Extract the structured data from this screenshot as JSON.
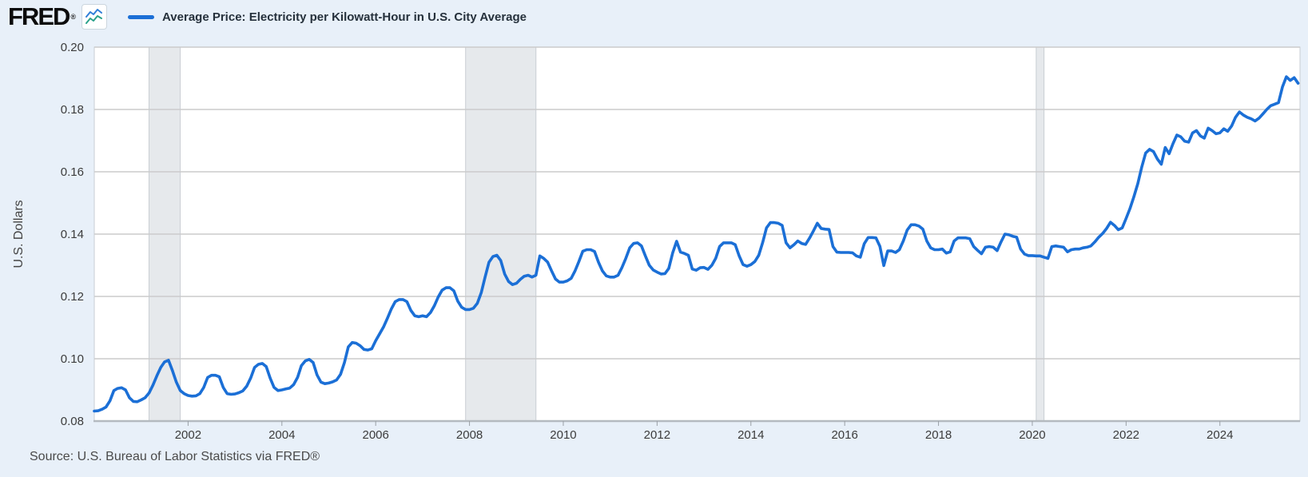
{
  "header": {
    "logo_text": "FRED",
    "registered_mark": "®",
    "legend": {
      "label": "Average Price: Electricity per Kilowatt-Hour in U.S. City Average",
      "swatch_color": "#1b6fd6"
    }
  },
  "y_axis": {
    "title": "U.S. Dollars",
    "tick_labels": [
      "0.20",
      "0.18",
      "0.16",
      "0.14",
      "0.12",
      "0.10",
      "0.08"
    ],
    "tick_values": [
      0.2,
      0.18,
      0.16,
      0.14,
      0.12,
      0.1,
      0.08
    ]
  },
  "x_axis": {
    "tick_labels": [
      "2002",
      "2004",
      "2006",
      "2008",
      "2010",
      "2012",
      "2014",
      "2016",
      "2018",
      "2020",
      "2022",
      "2024"
    ],
    "tick_values": [
      2002,
      2004,
      2006,
      2008,
      2010,
      2012,
      2014,
      2016,
      2018,
      2020,
      2022,
      2024
    ]
  },
  "footer": {
    "source": "Source: U.S. Bureau of Labor Statistics via FRED®"
  },
  "colors": {
    "page_background": "#e8f0f9",
    "plot_background": "#ffffff",
    "plot_border": "#c9ced4",
    "axis_line": "#b4bac0",
    "gridline": "#cbcbcb",
    "tick_mark": "#9aa0a6",
    "tick_text": "#3c3c3c",
    "recession_fill": "#e6e9ec",
    "recession_edge": "#c9ced3",
    "series_line": "#1b6fd6",
    "icon_blue": "#2f7ed8",
    "icon_green": "#2aa18a"
  },
  "chart_data": {
    "type": "line",
    "title": "Average Price: Electricity per Kilowatt-Hour in U.S. City Average",
    "ylabel": "U.S. Dollars",
    "xlim": [
      2000.0,
      2025.708
    ],
    "ylim": [
      0.08,
      0.2
    ],
    "y_gridlines": [
      0.08,
      0.1,
      0.12,
      0.14,
      0.16,
      0.18,
      0.2
    ],
    "x_ticks": [
      2002,
      2004,
      2006,
      2008,
      2010,
      2012,
      2014,
      2016,
      2018,
      2020,
      2022,
      2024
    ],
    "grid": "horizontal-only",
    "legend_position": "top-left",
    "recession_bands": [
      [
        2001.167,
        2001.833
      ],
      [
        2007.917,
        2009.417
      ],
      [
        2020.083,
        2020.25
      ]
    ],
    "frequency": "monthly",
    "x_start": "2000-01",
    "x_end": "2025-09",
    "series": [
      {
        "name": "Average Price: Electricity per Kilowatt-Hour in U.S. City Average",
        "color": "#1b6fd6",
        "values": [
          0.0832,
          0.0833,
          0.0838,
          0.0845,
          0.0865,
          0.0898,
          0.0905,
          0.0907,
          0.09,
          0.0875,
          0.0863,
          0.0862,
          0.0868,
          0.0875,
          0.089,
          0.0915,
          0.0945,
          0.0972,
          0.099,
          0.0995,
          0.0962,
          0.0925,
          0.0898,
          0.0888,
          0.0882,
          0.088,
          0.0881,
          0.0888,
          0.0908,
          0.094,
          0.0947,
          0.0947,
          0.0942,
          0.0908,
          0.0888,
          0.0886,
          0.0887,
          0.0891,
          0.0897,
          0.0912,
          0.0938,
          0.0972,
          0.0982,
          0.0985,
          0.0975,
          0.0938,
          0.0908,
          0.0898,
          0.09,
          0.0903,
          0.0906,
          0.0917,
          0.094,
          0.0978,
          0.0993,
          0.0998,
          0.0988,
          0.0948,
          0.0925,
          0.092,
          0.0922,
          0.0926,
          0.0932,
          0.095,
          0.0988,
          0.1038,
          0.1052,
          0.105,
          0.1042,
          0.103,
          0.1028,
          0.1032,
          0.1058,
          0.108,
          0.1102,
          0.113,
          0.116,
          0.1183,
          0.119,
          0.119,
          0.1183,
          0.1155,
          0.1138,
          0.1135,
          0.1138,
          0.1135,
          0.1148,
          0.117,
          0.1198,
          0.122,
          0.1228,
          0.1228,
          0.1218,
          0.1185,
          0.1165,
          0.1158,
          0.1158,
          0.1162,
          0.1178,
          0.1212,
          0.1262,
          0.131,
          0.1328,
          0.1332,
          0.1315,
          0.1272,
          0.1248,
          0.1238,
          0.1242,
          0.1255,
          0.1265,
          0.1268,
          0.1262,
          0.1268,
          0.133,
          0.1322,
          0.131,
          0.1282,
          0.1256,
          0.1246,
          0.1246,
          0.125,
          0.1258,
          0.1282,
          0.1312,
          0.1345,
          0.135,
          0.135,
          0.1344,
          0.131,
          0.1282,
          0.1266,
          0.1262,
          0.1262,
          0.1268,
          0.1292,
          0.1322,
          0.1356,
          0.137,
          0.1372,
          0.1362,
          0.133,
          0.13,
          0.1285,
          0.1278,
          0.1272,
          0.1273,
          0.129,
          0.134,
          0.1377,
          0.1342,
          0.1338,
          0.1332,
          0.1288,
          0.1284,
          0.1292,
          0.1293,
          0.1287,
          0.13,
          0.1322,
          0.136,
          0.1372,
          0.1372,
          0.1372,
          0.1366,
          0.133,
          0.1302,
          0.1297,
          0.1302,
          0.1312,
          0.1332,
          0.1372,
          0.142,
          0.1437,
          0.1437,
          0.1435,
          0.1428,
          0.1372,
          0.1356,
          0.1366,
          0.1378,
          0.137,
          0.1367,
          0.1387,
          0.141,
          0.1435,
          0.1418,
          0.1416,
          0.1415,
          0.136,
          0.1342,
          0.1341,
          0.1341,
          0.1341,
          0.134,
          0.133,
          0.1326,
          0.1369,
          0.1389,
          0.1389,
          0.1388,
          0.1361,
          0.1299,
          0.1346,
          0.1346,
          0.1341,
          0.135,
          0.1378,
          0.1413,
          0.143,
          0.143,
          0.1426,
          0.1416,
          0.1378,
          0.1356,
          0.135,
          0.135,
          0.1352,
          0.1339,
          0.1343,
          0.1378,
          0.1388,
          0.1388,
          0.1388,
          0.1385,
          0.136,
          0.1348,
          0.1337,
          0.1358,
          0.136,
          0.1358,
          0.1347,
          0.1375,
          0.14,
          0.1398,
          0.1393,
          0.139,
          0.1352,
          0.1336,
          0.1331,
          0.1331,
          0.133,
          0.133,
          0.1326,
          0.1322,
          0.136,
          0.1362,
          0.136,
          0.1358,
          0.1343,
          0.135,
          0.1352,
          0.1352,
          0.1356,
          0.1358,
          0.1362,
          0.1375,
          0.139,
          0.1402,
          0.1418,
          0.1438,
          0.1428,
          0.1414,
          0.142,
          0.145,
          0.1482,
          0.152,
          0.1562,
          0.1615,
          0.166,
          0.1672,
          0.1665,
          0.1641,
          0.1624,
          0.1678,
          0.1658,
          0.169,
          0.1718,
          0.1712,
          0.1698,
          0.1695,
          0.1725,
          0.1732,
          0.1715,
          0.1708,
          0.174,
          0.1732,
          0.1722,
          0.1725,
          0.1738,
          0.173,
          0.1747,
          0.1775,
          0.1792,
          0.1782,
          0.1775,
          0.177,
          0.1763,
          0.1772,
          0.1786,
          0.18,
          0.1812,
          0.1817,
          0.1822,
          0.1872,
          0.1905,
          0.1893,
          0.1902,
          0.1884
        ]
      }
    ]
  }
}
